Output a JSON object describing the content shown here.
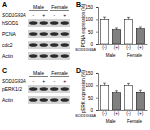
{
  "chart_data": [
    {
      "type": "bar",
      "title": "B",
      "ylabel": "PCNA expression (%)",
      "categories": [
        "(-)",
        "(+)",
        "(-)",
        "(+)"
      ],
      "values": [
        100,
        58,
        100,
        62
      ],
      "errors": [
        9,
        7,
        8,
        7
      ],
      "colors": [
        "#ffffff",
        "#808080",
        "#ffffff",
        "#808080"
      ],
      "ylim": [
        0,
        150
      ],
      "yticks": [
        0,
        50,
        100,
        150
      ],
      "annotations": [
        "SOD1G93A",
        "Male",
        "Female"
      ]
    },
    {
      "type": "bar",
      "title": "D",
      "ylabel": "pERK expression (%)",
      "categories": [
        "(-)",
        "(+)",
        "(-)",
        "(+)"
      ],
      "values": [
        100,
        70,
        100,
        72
      ],
      "errors": [
        9,
        8,
        8,
        8
      ],
      "colors": [
        "#ffffff",
        "#808080",
        "#ffffff",
        "#808080"
      ],
      "ylim": [
        0,
        150
      ],
      "yticks": [
        0,
        50,
        100,
        150
      ],
      "annotations": [
        "SOD1G93A",
        "Male",
        "Female"
      ]
    }
  ],
  "blots": [
    {
      "label": "A",
      "groups": [
        "Male",
        "Female"
      ],
      "row_label": "SOD1G93A",
      "lanes": [
        "-",
        "+",
        "-",
        "+"
      ],
      "bands": [
        "hSOD1",
        "PCNA",
        "cdc2",
        "Actin"
      ]
    },
    {
      "label": "C",
      "groups": [
        "Male",
        "Female"
      ],
      "row_label": "SOD1G93A",
      "lanes": [
        "-",
        "+",
        "-",
        "+"
      ],
      "bands": [
        "pERK1/2",
        "Actin"
      ]
    }
  ]
}
